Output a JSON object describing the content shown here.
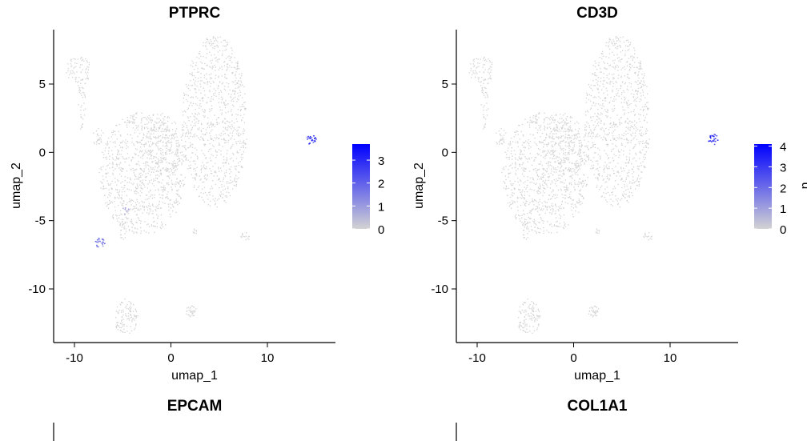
{
  "chart_data": [
    {
      "type": "scatter",
      "title": "PTPRC",
      "xlabel": "umap_1",
      "ylabel": "umap_2",
      "xlim": [
        -12,
        17
      ],
      "ylim": [
        -14,
        9
      ],
      "xticks": [
        -10,
        0,
        10
      ],
      "yticks": [
        5,
        0,
        -5,
        -10
      ],
      "legend": {
        "min": 0,
        "max": 3.7,
        "ticks": [
          0,
          1,
          2,
          3
        ],
        "low_color": "#d3d3d3",
        "high_color": "#0000ff"
      },
      "expressing_clusters": [
        {
          "name": "positive-cluster-right",
          "center": [
            14.5,
            1.0
          ],
          "level": 3.2
        },
        {
          "name": "positive-cluster-lower-left",
          "center": [
            -7.4,
            -6.6
          ],
          "level": 1.8
        },
        {
          "name": "positive-speck",
          "center": [
            -4.9,
            -4.3
          ],
          "level": 1.2
        }
      ]
    },
    {
      "type": "scatter",
      "title": "CD3D",
      "xlabel": "umap_1",
      "ylabel": "umap_2",
      "xlim": [
        -12,
        17
      ],
      "ylim": [
        -14,
        9
      ],
      "xticks": [
        -10,
        0,
        10
      ],
      "yticks": [
        5,
        0,
        -5,
        -10
      ],
      "legend": {
        "min": 0,
        "max": 4.1,
        "ticks": [
          0,
          1,
          2,
          3,
          4
        ],
        "low_color": "#d3d3d3",
        "high_color": "#0000ff",
        "title_fragment": "u"
      },
      "expressing_clusters": [
        {
          "name": "positive-cluster-right",
          "center": [
            14.4,
            1.0
          ],
          "level": 3.5
        }
      ]
    },
    {
      "type": "scatter",
      "title": "EPCAM",
      "partial": true
    },
    {
      "type": "scatter",
      "title": "COL1A1",
      "partial": true
    }
  ],
  "colors": {
    "point_grey": "#d3d3d3",
    "axis": "#000000"
  }
}
